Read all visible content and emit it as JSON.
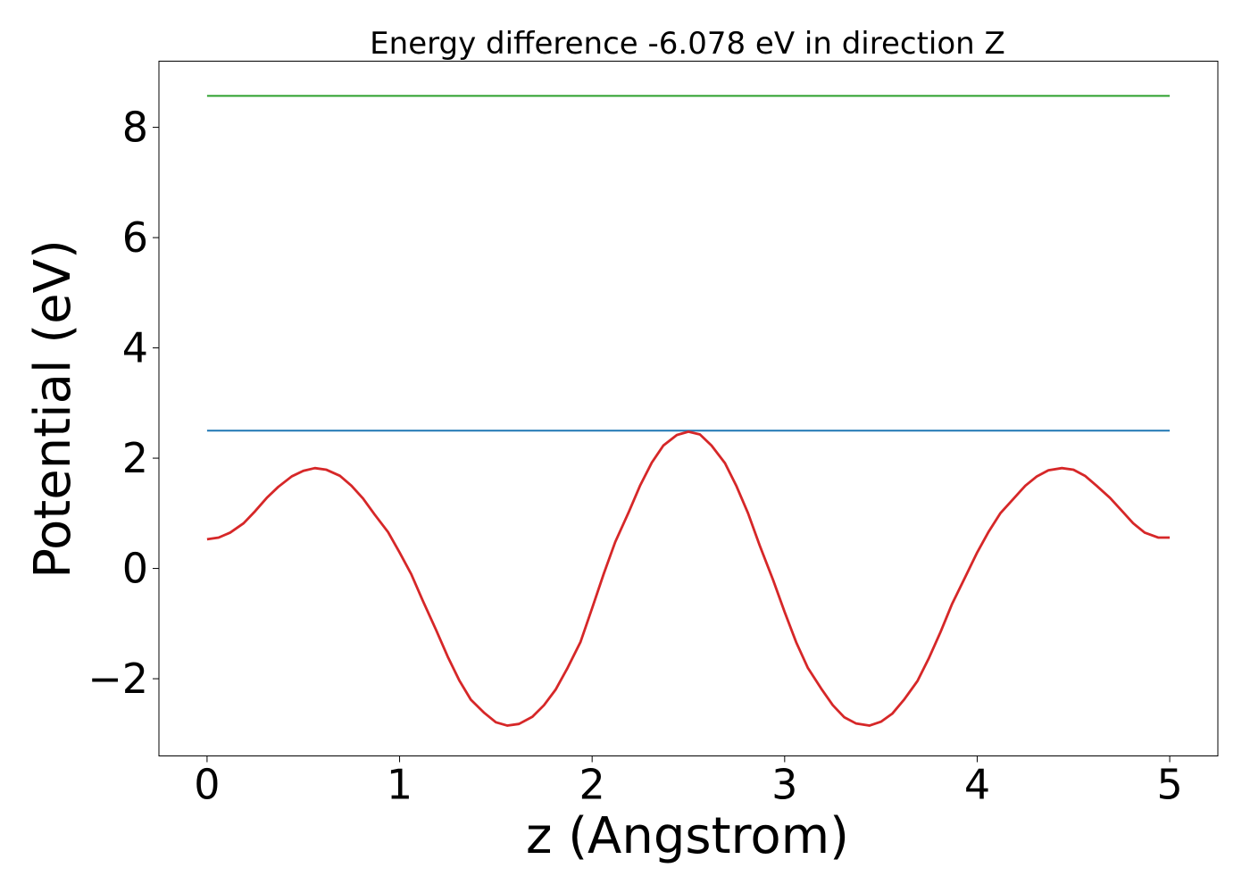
{
  "chart_data": {
    "type": "line",
    "title": "Energy difference -6.078 eV in direction Z",
    "xlabel": "z (Angstrom)",
    "ylabel": "Potential (eV)",
    "xlim": [
      -0.25,
      5.25
    ],
    "ylim": [
      -3.4,
      9.2
    ],
    "x_ticks": [
      0,
      1,
      2,
      3,
      4,
      5
    ],
    "x_tick_labels": [
      "0",
      "1",
      "2",
      "3",
      "4",
      "5"
    ],
    "y_ticks": [
      -2,
      0,
      2,
      4,
      6,
      8
    ],
    "y_tick_labels": [
      "−2",
      "0",
      "2",
      "4",
      "6",
      "8"
    ],
    "grid": false,
    "series": [
      {
        "color": "#2ca02c",
        "x": [
          0,
          5
        ],
        "y": [
          8.57,
          8.57
        ]
      },
      {
        "color": "#1f77b4",
        "x": [
          0,
          5
        ],
        "y": [
          2.5,
          2.5
        ]
      },
      {
        "color": "#d62728",
        "x": [
          0.0,
          0.06,
          0.12,
          0.19,
          0.25,
          0.31,
          0.37,
          0.44,
          0.5,
          0.56,
          0.62,
          0.69,
          0.75,
          0.81,
          0.87,
          0.94,
          1.0,
          1.06,
          1.12,
          1.19,
          1.25,
          1.31,
          1.37,
          1.44,
          1.5,
          1.56,
          1.62,
          1.69,
          1.75,
          1.81,
          1.87,
          1.94,
          2.0,
          2.06,
          2.12,
          2.19,
          2.25,
          2.31,
          2.37,
          2.44,
          2.5,
          2.56,
          2.62,
          2.69,
          2.75,
          2.81,
          2.87,
          2.94,
          3.0,
          3.06,
          3.12,
          3.19,
          3.25,
          3.31,
          3.37,
          3.44,
          3.5,
          3.56,
          3.62,
          3.69,
          3.75,
          3.81,
          3.87,
          3.94,
          4.0,
          4.06,
          4.12,
          4.19,
          4.25,
          4.31,
          4.37,
          4.44,
          4.5,
          4.56,
          4.62,
          4.69,
          4.75,
          4.81,
          4.87,
          4.94,
          5.0
        ],
        "y": [
          0.53,
          0.56,
          0.65,
          0.82,
          1.04,
          1.28,
          1.48,
          1.67,
          1.77,
          1.82,
          1.79,
          1.68,
          1.5,
          1.27,
          0.98,
          0.66,
          0.29,
          -0.1,
          -0.58,
          -1.12,
          -1.6,
          -2.03,
          -2.38,
          -2.62,
          -2.79,
          -2.85,
          -2.82,
          -2.69,
          -2.48,
          -2.2,
          -1.82,
          -1.33,
          -0.72,
          -0.1,
          0.48,
          1.02,
          1.51,
          1.92,
          2.23,
          2.42,
          2.48,
          2.43,
          2.23,
          1.91,
          1.49,
          1.0,
          0.42,
          -0.21,
          -0.79,
          -1.34,
          -1.8,
          -2.18,
          -2.48,
          -2.7,
          -2.81,
          -2.85,
          -2.78,
          -2.63,
          -2.38,
          -2.04,
          -1.62,
          -1.15,
          -0.64,
          -0.14,
          0.29,
          0.67,
          1.0,
          1.27,
          1.5,
          1.67,
          1.78,
          1.82,
          1.79,
          1.68,
          1.5,
          1.28,
          1.05,
          0.82,
          0.65,
          0.56,
          0.56
        ]
      }
    ]
  }
}
